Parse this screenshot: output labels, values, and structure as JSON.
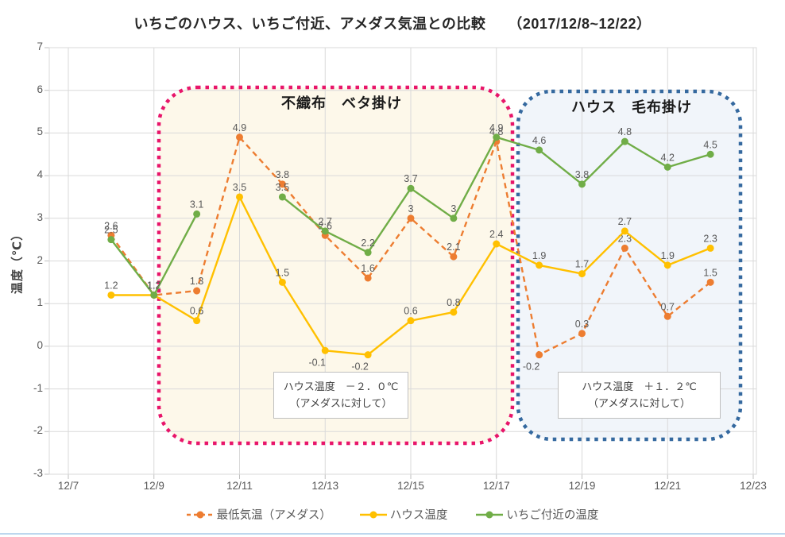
{
  "title": {
    "text": "いちごのハウス、いちご付近、アメダス気温との比較　　（2017/12/8~12/22）"
  },
  "y_axis": {
    "label": "温度（℃）",
    "min": -3,
    "max": 7,
    "ticks": [
      7,
      6,
      5,
      4,
      3,
      2,
      1,
      0,
      -1,
      -2,
      -3
    ]
  },
  "x_axis": {
    "ticks": [
      "12/7",
      "12/9",
      "12/11",
      "12/13",
      "12/15",
      "12/17",
      "12/19",
      "12/21",
      "12/23"
    ]
  },
  "chart_data": {
    "type": "line",
    "x": [
      "12/8",
      "12/9",
      "12/10",
      "12/11",
      "12/12",
      "12/13",
      "12/14",
      "12/15",
      "12/16",
      "12/17",
      "12/18",
      "12/19",
      "12/20",
      "12/21",
      "12/22"
    ],
    "xlabel": "",
    "ylabel": "温度（℃）",
    "ylim": [
      -3,
      7
    ],
    "grid": true,
    "legend_position": "bottom",
    "series": [
      {
        "name": "最低気温（アメダス）",
        "color": "#ED7D31",
        "line_style": "dashed",
        "values": [
          2.6,
          1.2,
          1.3,
          4.9,
          3.8,
          2.6,
          1.6,
          3.0,
          2.1,
          4.8,
          -0.2,
          0.3,
          2.3,
          0.7,
          1.5
        ],
        "labels": [
          "2.6",
          "1.2",
          "1.3",
          "4.9",
          "3.8",
          "2.6",
          "1.6",
          "3",
          "2.1",
          "4.8",
          "-0.2",
          "0.3",
          "2.3",
          "0.7",
          "1.5"
        ]
      },
      {
        "name": "ハウス温度",
        "color": "#FFC000",
        "line_style": "solid",
        "values": [
          1.2,
          1.2,
          0.6,
          3.5,
          1.5,
          -0.1,
          -0.2,
          0.6,
          0.8,
          2.4,
          1.9,
          1.7,
          2.7,
          1.9,
          2.3
        ],
        "labels": [
          "1.2",
          "1.2",
          "0.6",
          "3.5",
          "1.5",
          "-0.1",
          "-0.2",
          "0.6",
          "0.8",
          "2.4",
          "1.9",
          "1.7",
          "2.7",
          "1.9",
          "2.3"
        ]
      },
      {
        "name": "いちご付近の温度",
        "color": "#70AD47",
        "line_style": "solid",
        "values": [
          2.5,
          1.2,
          3.1,
          null,
          3.5,
          2.7,
          2.2,
          3.7,
          3.0,
          4.9,
          4.6,
          3.8,
          4.8,
          4.2,
          4.5
        ],
        "labels": [
          "2.5",
          "1.2",
          "3.1",
          "",
          "3.5",
          "2.7",
          "2.2",
          "3.7",
          "3",
          "4.9",
          "4.6",
          "3.8",
          "4.8",
          "4.2",
          "4.5"
        ]
      }
    ]
  },
  "regions": [
    {
      "label": "不織布　ベタ掛け",
      "border_color": "#E8156A",
      "fill_color": "#FDF8EA",
      "note_line1": "ハウス温度　－２．０℃",
      "note_line2": "（アメダスに対して）"
    },
    {
      "label": "ハウス　毛布掛け",
      "border_color": "#35699F",
      "fill_color": "#F1F5FA",
      "note_line1": "ハウス温度　＋１．２℃",
      "note_line2": "（アメダスに対して）"
    }
  ],
  "colors": {
    "gridline": "#D9D9D9",
    "plot_border": "#D9D9D9",
    "tick_mark": "#BFBFBF",
    "data_label": "#595959",
    "bottom_rule": "#BDD7EE"
  }
}
